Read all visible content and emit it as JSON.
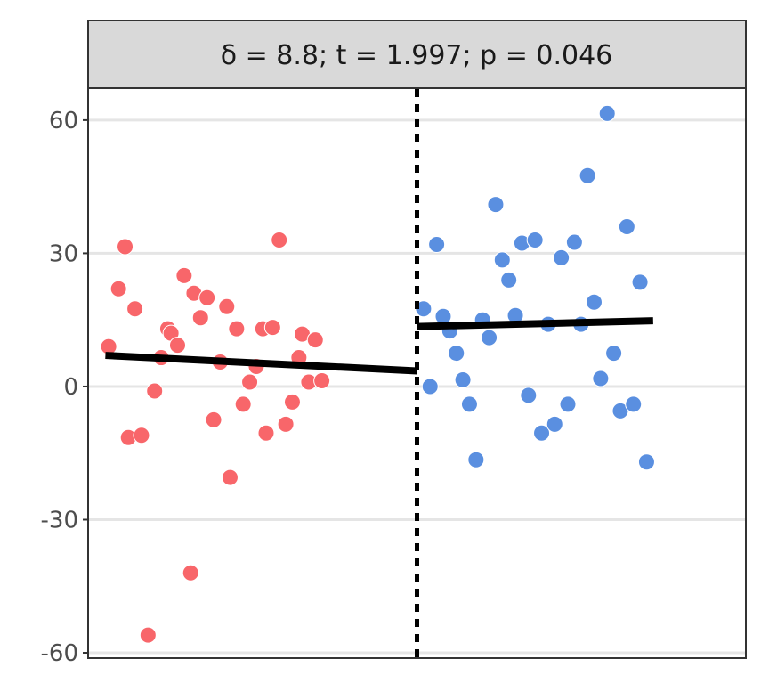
{
  "chart_data": {
    "type": "scatter",
    "title": "δ = 8.8; t = 1.997; p = 0.046",
    "xlabel": "",
    "ylabel": "",
    "ylim": [
      -61,
      67
    ],
    "xlim": [
      -1,
      1
    ],
    "y_ticks": [
      60,
      30,
      0,
      -30,
      -60
    ],
    "y_tick_labels": [
      "60",
      "30",
      "0",
      "-30",
      "-60"
    ],
    "gridlines": "horizontal",
    "cutoff": 0,
    "cutoff_style": "dotted",
    "series": [
      {
        "color": "#f8766d",
        "points": [
          [
            -0.94,
            9
          ],
          [
            -0.91,
            22
          ],
          [
            -0.89,
            31.5
          ],
          [
            -0.88,
            -11.5
          ],
          [
            -0.86,
            17.5
          ],
          [
            -0.84,
            -11
          ],
          [
            -0.82,
            -56
          ],
          [
            -0.8,
            -1
          ],
          [
            -0.78,
            6.5
          ],
          [
            -0.76,
            13
          ],
          [
            -0.75,
            12
          ],
          [
            -0.73,
            9.3
          ],
          [
            -0.71,
            25
          ],
          [
            -0.69,
            -42
          ],
          [
            -0.68,
            21
          ],
          [
            -0.66,
            15.5
          ],
          [
            -0.64,
            20
          ],
          [
            -0.62,
            -7.5
          ],
          [
            -0.6,
            5.5
          ],
          [
            -0.58,
            18
          ],
          [
            -0.57,
            -20.5
          ],
          [
            -0.55,
            13
          ],
          [
            -0.53,
            -4
          ],
          [
            -0.51,
            1
          ],
          [
            -0.49,
            4.5
          ],
          [
            -0.47,
            13
          ],
          [
            -0.46,
            -10.5
          ],
          [
            -0.44,
            13.3
          ],
          [
            -0.42,
            33
          ],
          [
            -0.4,
            -8.5
          ],
          [
            -0.38,
            -3.5
          ],
          [
            -0.36,
            6.5
          ],
          [
            -0.35,
            11.8
          ],
          [
            -0.33,
            1
          ],
          [
            -0.31,
            10.5
          ],
          [
            -0.29,
            1.3
          ]
        ],
        "trend": [
          [
            -0.95,
            7
          ],
          [
            0,
            3.5
          ]
        ]
      },
      {
        "color": "#00bfc4",
        "points": [
          [
            0.02,
            17.5
          ],
          [
            0.04,
            0
          ],
          [
            0.06,
            32
          ],
          [
            0.08,
            15.8
          ],
          [
            0.1,
            12.5
          ],
          [
            0.12,
            7.5
          ],
          [
            0.14,
            1.5
          ],
          [
            0.16,
            -4
          ],
          [
            0.18,
            -16.5
          ],
          [
            0.2,
            15
          ],
          [
            0.22,
            11
          ],
          [
            0.24,
            41
          ],
          [
            0.26,
            28.5
          ],
          [
            0.28,
            24
          ],
          [
            0.3,
            16
          ],
          [
            0.32,
            32.3
          ],
          [
            0.34,
            -2
          ],
          [
            0.36,
            33
          ],
          [
            0.38,
            -10.5
          ],
          [
            0.4,
            14
          ],
          [
            0.42,
            -8.5
          ],
          [
            0.44,
            29
          ],
          [
            0.46,
            -4
          ],
          [
            0.48,
            32.5
          ],
          [
            0.5,
            14
          ],
          [
            0.52,
            47.5
          ],
          [
            0.54,
            19
          ],
          [
            0.56,
            1.8
          ],
          [
            0.58,
            61.5
          ],
          [
            0.6,
            7.5
          ],
          [
            0.62,
            -5.5
          ],
          [
            0.64,
            36
          ],
          [
            0.66,
            -4
          ],
          [
            0.68,
            23.5
          ],
          [
            0.7,
            -17
          ]
        ],
        "trend": [
          [
            0,
            13.5
          ],
          [
            0.72,
            14.8
          ]
        ]
      }
    ]
  },
  "colors": {
    "treated_point": "#5a8fe0",
    "control_point": "#f8666a",
    "strip_fill": "#d9d9d9",
    "grid": "#e5e5e5",
    "frame": "#333333"
  }
}
